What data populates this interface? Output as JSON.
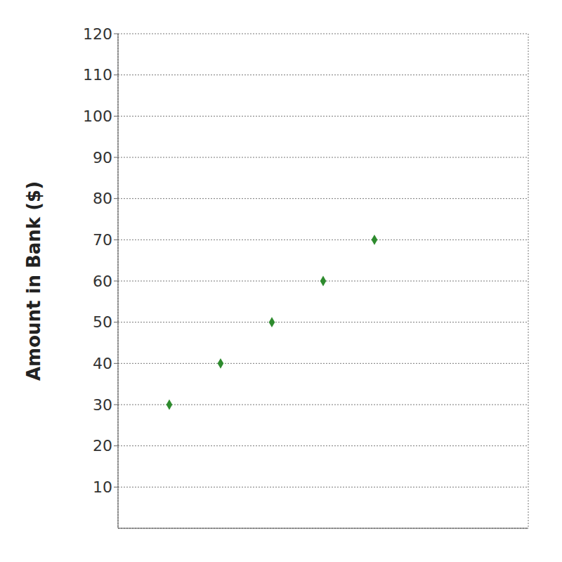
{
  "chart_data": {
    "type": "scatter",
    "y_label": "Amount in Bank ($)",
    "x": [
      1,
      2,
      3,
      4,
      5
    ],
    "values": [
      30,
      40,
      50,
      60,
      70
    ],
    "color": "#2e8b2e",
    "marker": "diamond",
    "xlim": [
      0,
      8
    ],
    "xticks": [
      1,
      2,
      3,
      4,
      5,
      6,
      7,
      8
    ],
    "ylim": [
      0,
      120
    ],
    "yticks": [
      10,
      20,
      30,
      40,
      50,
      60,
      70,
      80,
      90,
      100,
      110,
      120
    ],
    "grid": true,
    "tick_labels": "y"
  }
}
